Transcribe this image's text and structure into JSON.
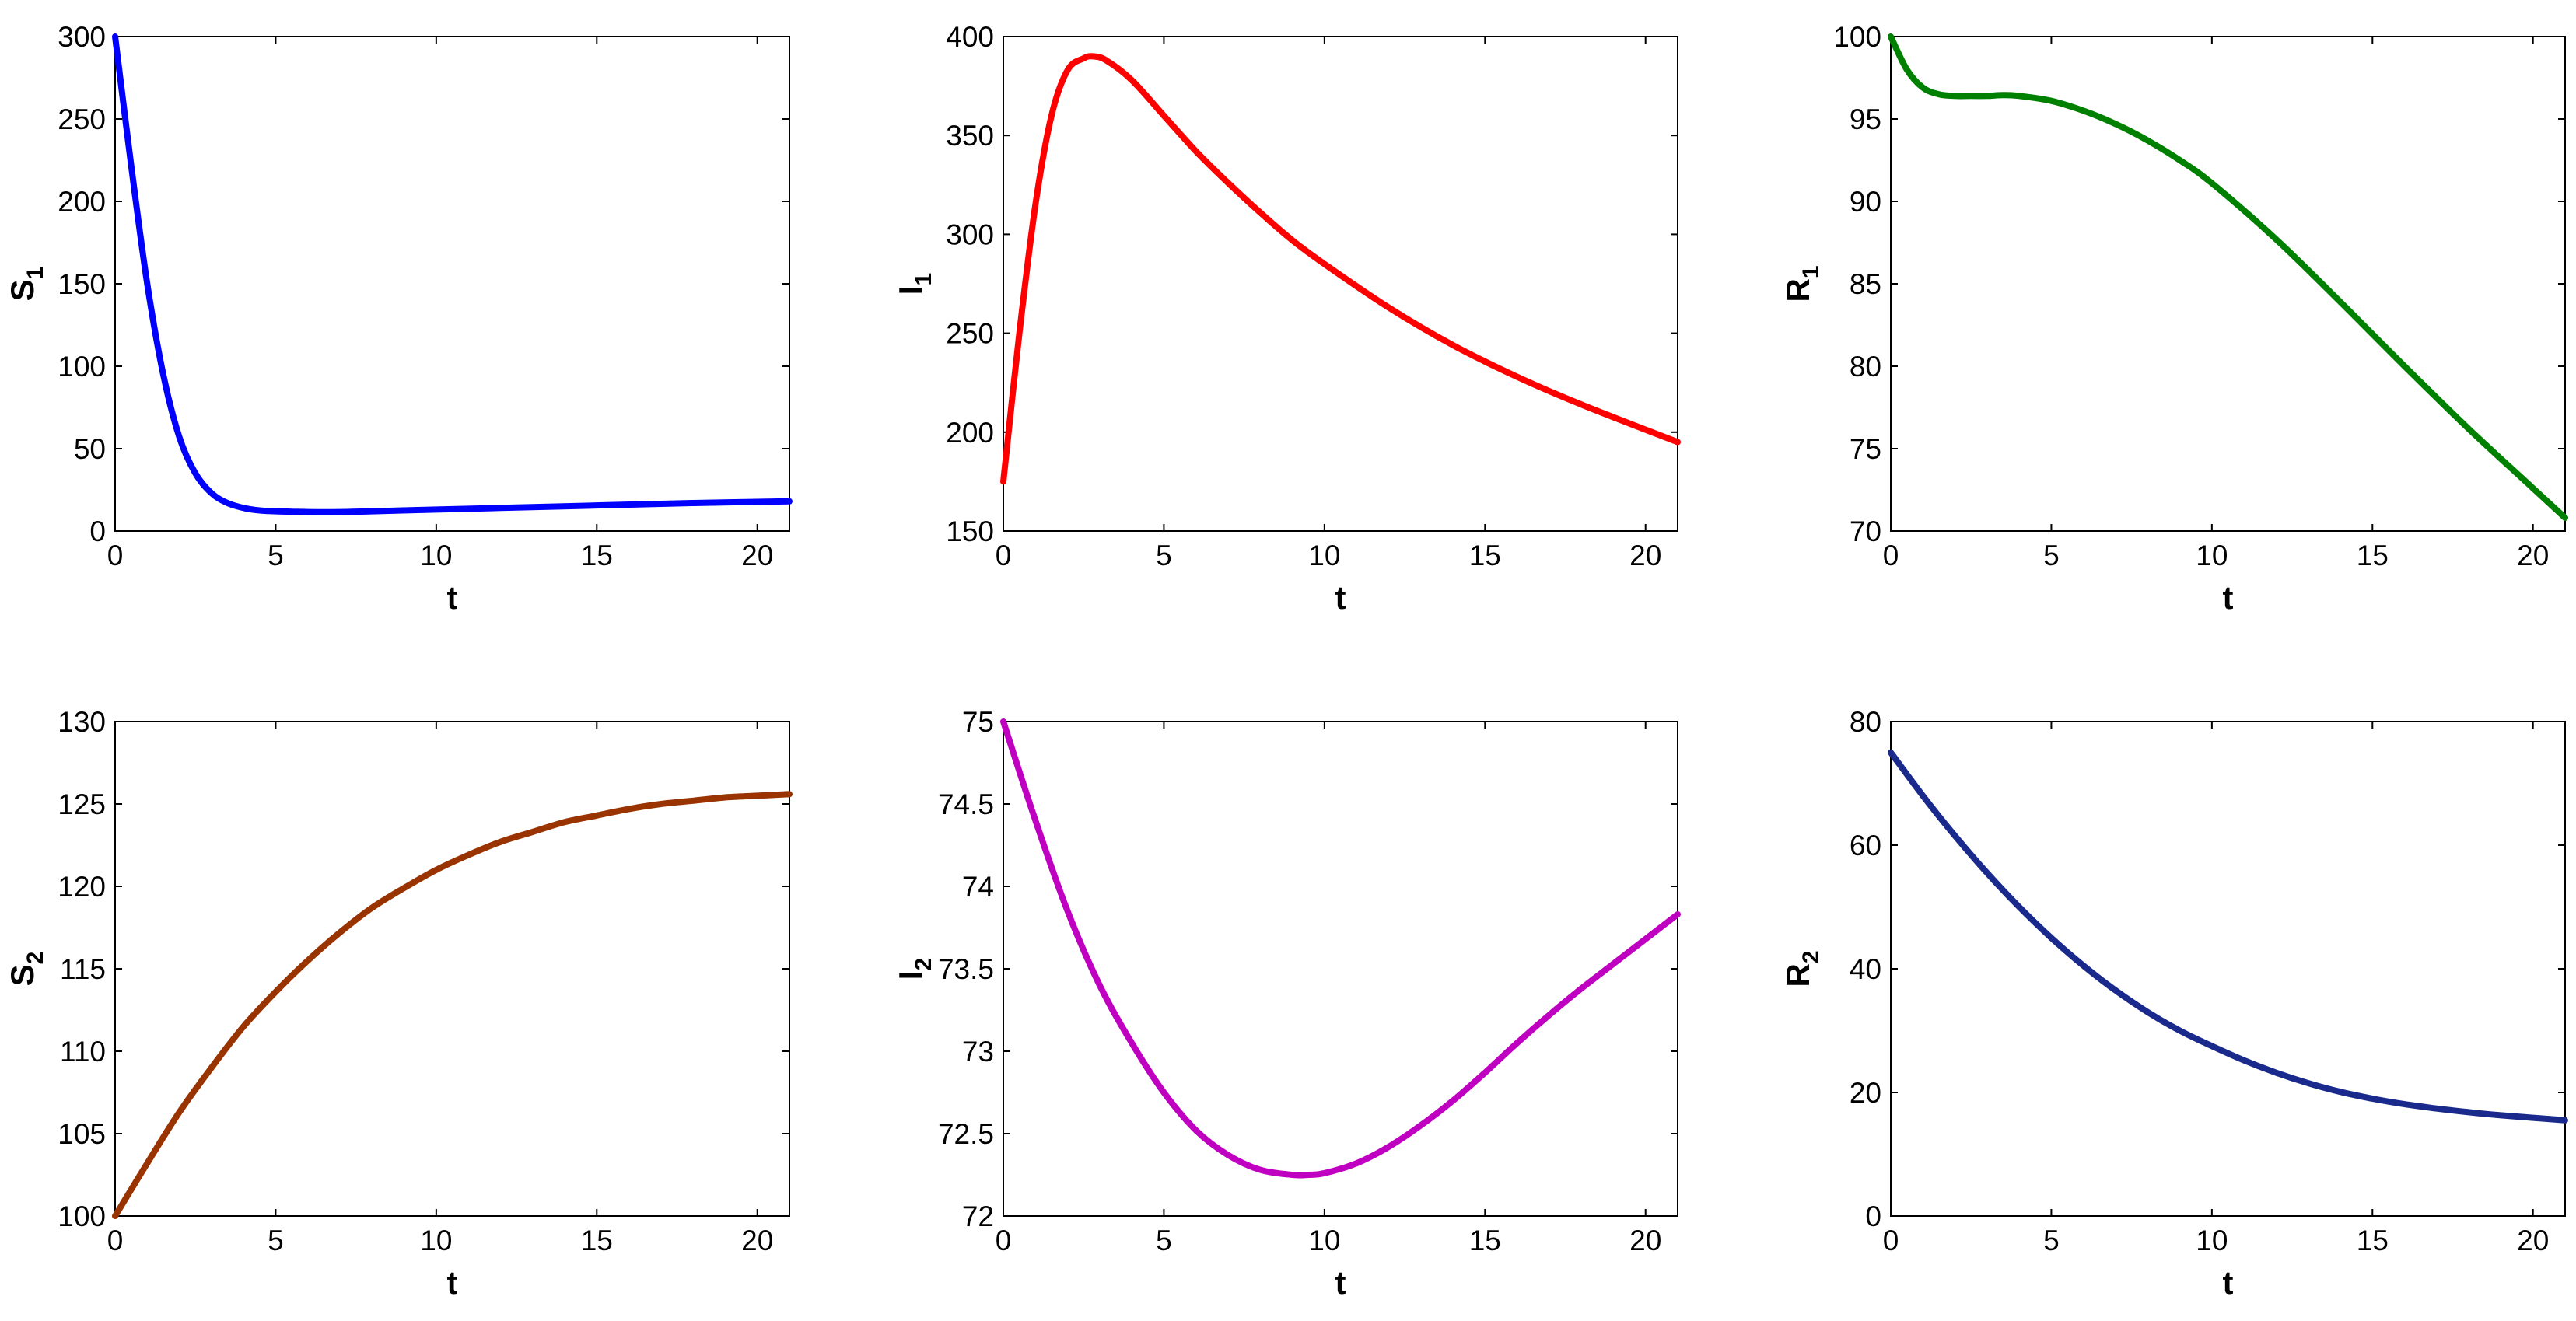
{
  "chart_data": [
    {
      "type": "line",
      "xlabel": "t",
      "ylabel": {
        "main": "S",
        "sub": "1"
      },
      "xlim": [
        0,
        21
      ],
      "ylim": [
        0,
        300
      ],
      "xticks": [
        0,
        5,
        10,
        15,
        20
      ],
      "yticks": [
        0,
        50,
        100,
        150,
        200,
        250,
        300
      ],
      "series": [
        {
          "color": "#0000ff",
          "x": [
            0,
            0.5,
            1,
            1.5,
            2,
            2.5,
            3,
            3.5,
            4,
            4.5,
            5,
            6,
            7,
            8,
            10,
            12,
            15,
            18,
            21
          ],
          "y": [
            300,
            222,
            150,
            95,
            57,
            35,
            23,
            17,
            14,
            12.5,
            12,
            11.5,
            11.5,
            12,
            13,
            14,
            15.5,
            17,
            18
          ]
        }
      ]
    },
    {
      "type": "line",
      "xlabel": "t",
      "ylabel": {
        "main": "I",
        "sub": "1"
      },
      "xlim": [
        0,
        21
      ],
      "ylim": [
        150,
        400
      ],
      "xticks": [
        0,
        5,
        10,
        15,
        20
      ],
      "yticks": [
        150,
        200,
        250,
        300,
        350,
        400
      ],
      "series": [
        {
          "color": "#ff0000",
          "x": [
            0,
            0.5,
            1,
            1.5,
            2,
            2.5,
            2.8,
            3.2,
            4,
            5,
            6,
            7,
            8,
            9,
            10,
            12,
            14,
            16,
            18,
            21
          ],
          "y": [
            175,
            250,
            315,
            360,
            383,
            389,
            390,
            388,
            378,
            360,
            342,
            326,
            311,
            297,
            285,
            263,
            244,
            228,
            214,
            195
          ]
        }
      ]
    },
    {
      "type": "line",
      "xlabel": "t",
      "ylabel": {
        "main": "R",
        "sub": "1"
      },
      "xlim": [
        0,
        21
      ],
      "ylim": [
        70,
        100
      ],
      "xticks": [
        0,
        5,
        10,
        15,
        20
      ],
      "yticks": [
        70,
        75,
        80,
        85,
        90,
        95,
        100
      ],
      "series": [
        {
          "color": "#008000",
          "x": [
            0,
            0.5,
            1,
            1.5,
            2,
            2.5,
            3,
            3.5,
            4,
            5,
            6,
            7,
            8,
            9,
            10,
            12,
            14,
            16,
            18,
            20,
            21
          ],
          "y": [
            100,
            98,
            96.9,
            96.5,
            96.4,
            96.4,
            96.4,
            96.45,
            96.4,
            96.1,
            95.5,
            94.7,
            93.7,
            92.5,
            91.1,
            87.7,
            83.9,
            80,
            76.2,
            72.6,
            70.8
          ]
        }
      ]
    },
    {
      "type": "line",
      "xlabel": "t",
      "ylabel": {
        "main": "S",
        "sub": "2"
      },
      "xlim": [
        0,
        21
      ],
      "ylim": [
        100,
        130
      ],
      "xticks": [
        0,
        5,
        10,
        15,
        20
      ],
      "yticks": [
        100,
        105,
        110,
        115,
        120,
        125,
        130
      ],
      "series": [
        {
          "color": "#993300",
          "x": [
            0,
            1,
            2,
            3,
            4,
            5,
            6,
            7,
            8,
            9,
            10,
            11,
            12,
            13,
            14,
            15,
            16,
            17,
            18,
            19,
            20,
            21
          ],
          "y": [
            100,
            103.2,
            106.3,
            109,
            111.5,
            113.6,
            115.5,
            117.2,
            118.7,
            119.9,
            121,
            121.9,
            122.7,
            123.3,
            123.9,
            124.3,
            124.7,
            125,
            125.2,
            125.4,
            125.5,
            125.6
          ]
        }
      ]
    },
    {
      "type": "line",
      "xlabel": "t",
      "ylabel": {
        "main": "I",
        "sub": "2"
      },
      "xlim": [
        0,
        21
      ],
      "ylim": [
        72,
        75
      ],
      "xticks": [
        0,
        5,
        10,
        15,
        20
      ],
      "yticks": [
        72,
        72.5,
        73,
        73.5,
        74,
        74.5,
        75
      ],
      "ytick_labels": [
        "72",
        "72.5",
        "73",
        "73.5",
        "74",
        "74.5",
        "75"
      ],
      "series": [
        {
          "color": "#c000c0",
          "x": [
            0,
            1,
            2,
            3,
            4,
            5,
            6,
            7,
            8,
            9,
            9.5,
            10,
            11,
            12,
            13,
            14,
            15,
            16,
            17,
            18,
            19,
            20,
            21
          ],
          "y": [
            75,
            74.4,
            73.85,
            73.4,
            73.05,
            72.75,
            72.52,
            72.37,
            72.28,
            72.25,
            72.25,
            72.26,
            72.32,
            72.42,
            72.55,
            72.7,
            72.87,
            73.05,
            73.22,
            73.38,
            73.53,
            73.68,
            73.83
          ]
        }
      ]
    },
    {
      "type": "line",
      "xlabel": "t",
      "ylabel": {
        "main": "R",
        "sub": "2"
      },
      "xlim": [
        0,
        21
      ],
      "ylim": [
        0,
        80
      ],
      "xticks": [
        0,
        5,
        10,
        15,
        20
      ],
      "yticks": [
        0,
        20,
        40,
        60,
        80
      ],
      "series": [
        {
          "color": "#1a2a8c",
          "x": [
            0,
            1,
            2,
            3,
            4,
            5,
            6,
            7,
            8,
            9,
            10,
            11,
            12,
            13,
            14,
            15,
            16,
            17,
            18,
            19,
            20,
            21
          ],
          "y": [
            75,
            68,
            61.5,
            55.5,
            50,
            45,
            40.5,
            36.5,
            33,
            30,
            27.5,
            25.2,
            23.2,
            21.5,
            20.1,
            19,
            18.1,
            17.4,
            16.8,
            16.3,
            15.9,
            15.5
          ]
        }
      ]
    }
  ]
}
